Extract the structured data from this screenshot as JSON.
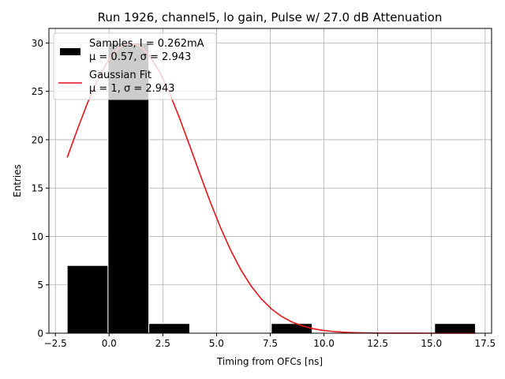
{
  "chart_data": {
    "type": "bar",
    "title": "Run 1926, channel5, lo gain, Pulse w/ 27.0 dB Attenuation",
    "xlabel": "Timing from OFCs [ns]",
    "ylabel": "Entries",
    "xlim": [
      -2.8,
      17.8
    ],
    "ylim": [
      0,
      31.5
    ],
    "xticks": [
      -2.5,
      0.0,
      2.5,
      5.0,
      7.5,
      10.0,
      12.5,
      15.0,
      17.5
    ],
    "xtick_labels": [
      "−2.5",
      "0.0",
      "2.5",
      "5.0",
      "7.5",
      "10.0",
      "12.5",
      "15.0",
      "17.5"
    ],
    "yticks": [
      0,
      5,
      10,
      15,
      20,
      25,
      30
    ],
    "ytick_labels": [
      "0",
      "5",
      "10",
      "15",
      "20",
      "25",
      "30"
    ],
    "grid": true,
    "legend_position": "top-left",
    "histogram": {
      "name": "Samples, I = 0.262mA",
      "stats": "μ = 0.57, σ = 2.943",
      "color": "#000000",
      "edge_color": "#ffffff",
      "bins": [
        {
          "x0": -1.95,
          "x1": -0.05,
          "count": 7
        },
        {
          "x0": -0.05,
          "x1": 1.85,
          "count": 30
        },
        {
          "x0": 1.85,
          "x1": 3.75,
          "count": 1
        },
        {
          "x0": 3.75,
          "x1": 5.65,
          "count": 0
        },
        {
          "x0": 5.65,
          "x1": 7.55,
          "count": 0
        },
        {
          "x0": 7.55,
          "x1": 9.45,
          "count": 1
        },
        {
          "x0": 9.45,
          "x1": 11.35,
          "count": 0
        },
        {
          "x0": 11.35,
          "x1": 13.25,
          "count": 0
        },
        {
          "x0": 13.25,
          "x1": 15.15,
          "count": 0
        },
        {
          "x0": 15.15,
          "x1": 17.05,
          "count": 1
        }
      ]
    },
    "fit": {
      "name": "Gaussian Fit",
      "stats": "μ = 1, σ = 2.943",
      "color": "#e8141a",
      "amplitude": 30.0,
      "mu": 1.0,
      "sigma": 2.943,
      "x_start": -1.95,
      "x_end": 17.05
    }
  }
}
